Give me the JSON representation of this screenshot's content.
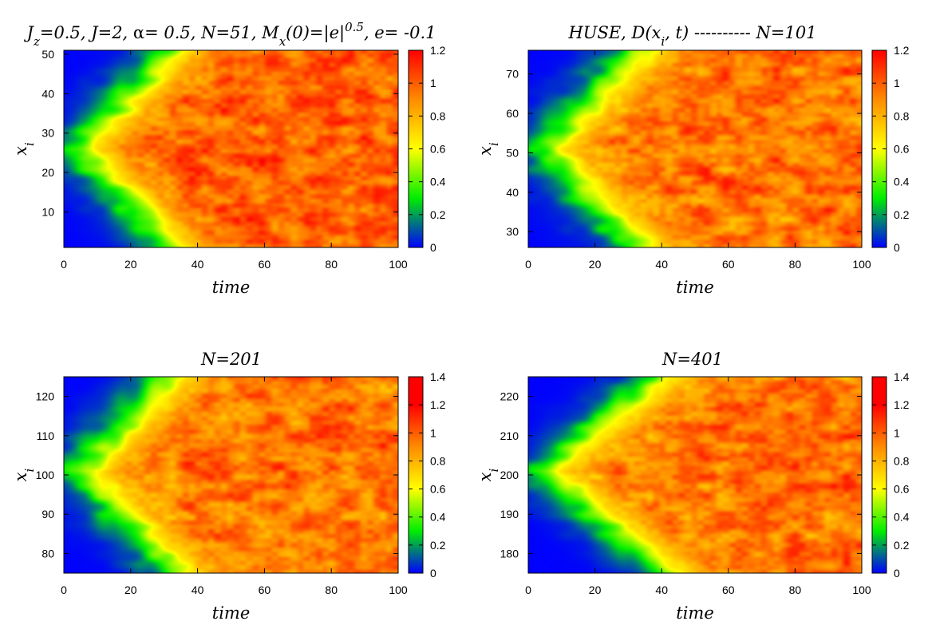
{
  "figure": {
    "colorscale": [
      "#0000ff",
      "#00ee00",
      "#ffff00",
      "#ff8c00",
      "#ff0000"
    ]
  },
  "chart_data": [
    {
      "type": "heatmap",
      "title": "J_z=0.5,  J=2, α= 0.5, N=51, M_x(0)=|e|^0.5, e= -0.1",
      "xlabel": "time",
      "ylabel": "x_i",
      "xlim": [
        0,
        100
      ],
      "ylim": [
        1,
        51
      ],
      "xticks": [
        0,
        20,
        40,
        60,
        80,
        100
      ],
      "yticks": [
        10,
        20,
        30,
        40,
        50
      ],
      "zlim": [
        0,
        1.2
      ],
      "colorbar_ticks": [
        0,
        0.2,
        0.4,
        0.6,
        0.8,
        1,
        1.2
      ],
      "source_site": 26,
      "front_velocity_sites_per_time": 0.9,
      "saturation_level": 1.0
    },
    {
      "type": "heatmap",
      "title": "HUSE, D(x_i, t) ---------- N=101",
      "xlabel": "time",
      "ylabel": "x_i",
      "xlim": [
        0,
        100
      ],
      "ylim": [
        26,
        76
      ],
      "xticks": [
        0,
        20,
        40,
        60,
        80,
        100
      ],
      "yticks": [
        30,
        40,
        50,
        60,
        70
      ],
      "zlim": [
        0,
        1.2
      ],
      "colorbar_ticks": [
        0,
        0.2,
        0.4,
        0.6,
        0.8,
        1,
        1.2
      ],
      "source_site": 51,
      "front_velocity_sites_per_time": 0.9,
      "saturation_level": 0.95
    },
    {
      "type": "heatmap",
      "title": "N=201",
      "xlabel": "time",
      "ylabel": "x_i",
      "xlim": [
        0,
        100
      ],
      "ylim": [
        75,
        125
      ],
      "xticks": [
        0,
        20,
        40,
        60,
        80,
        100
      ],
      "yticks": [
        80,
        90,
        100,
        110,
        120
      ],
      "zlim": [
        0,
        1.4
      ],
      "colorbar_ticks": [
        0,
        0.2,
        0.4,
        0.6,
        0.8,
        1,
        1.2,
        1.4
      ],
      "source_site": 101,
      "front_velocity_sites_per_time": 0.9,
      "saturation_level": 0.95
    },
    {
      "type": "heatmap",
      "title": "N=401",
      "xlabel": "time",
      "ylabel": "x_i",
      "xlim": [
        0,
        100
      ],
      "ylim": [
        175,
        225
      ],
      "xticks": [
        0,
        20,
        40,
        60,
        80,
        100
      ],
      "yticks": [
        180,
        190,
        200,
        210,
        220
      ],
      "zlim": [
        0,
        1.4
      ],
      "colorbar_ticks": [
        0,
        0.2,
        0.4,
        0.6,
        0.8,
        1,
        1.2,
        1.4
      ],
      "source_site": 201,
      "front_velocity_sites_per_time": 0.7,
      "saturation_level": 0.95
    }
  ]
}
